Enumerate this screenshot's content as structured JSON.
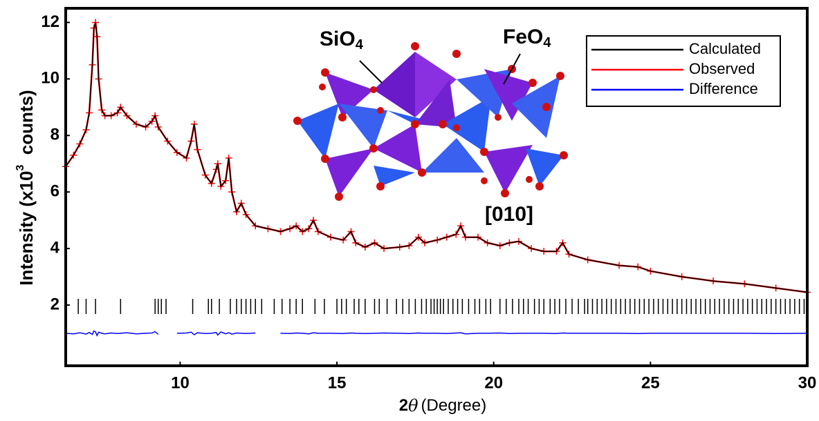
{
  "chart_data": {
    "type": "line",
    "y_label": {
      "text": "Intensity (x10",
      "sup": "3",
      "tail": "  counts)"
    },
    "x_label": {
      "prefix": "2",
      "symbol": "θ",
      "text": "(Degree)"
    },
    "annotations": [
      {
        "text": "SiO",
        "sub": "4"
      },
      {
        "text": "FeO",
        "sub": "4"
      },
      {
        "text": "[010]"
      }
    ],
    "x": [
      6.35,
      6.6,
      6.8,
      7.0,
      7.1,
      7.2,
      7.25,
      7.3,
      7.35,
      7.4,
      7.5,
      7.6,
      7.8,
      8.0,
      8.1,
      8.3,
      8.6,
      8.9,
      9.1,
      9.2,
      9.3,
      9.6,
      9.9,
      10.2,
      10.35,
      10.45,
      10.55,
      10.8,
      11.0,
      11.15,
      11.2,
      11.3,
      11.45,
      11.55,
      11.65,
      11.8,
      11.95,
      12.1,
      12.4,
      12.8,
      13.2,
      13.5,
      13.7,
      13.9,
      14.1,
      14.25,
      14.4,
      14.8,
      15.2,
      15.45,
      15.6,
      15.9,
      16.2,
      16.5,
      17.0,
      17.3,
      17.6,
      17.8,
      18.2,
      18.5,
      18.8,
      18.95,
      19.1,
      19.5,
      19.8,
      20.2,
      20.5,
      20.8,
      21.2,
      21.6,
      22.0,
      22.2,
      22.4,
      23.0,
      24.0,
      24.6,
      25.0,
      26.0,
      27.0,
      28.0,
      29.0,
      30.0
    ],
    "series": [
      {
        "name": "Calculated",
        "color": "#000000",
        "values": [
          6.9,
          7.3,
          7.7,
          8.2,
          8.8,
          10.5,
          11.8,
          12.0,
          11.5,
          10.0,
          8.9,
          8.7,
          8.7,
          8.8,
          9.0,
          8.7,
          8.4,
          8.3,
          8.5,
          8.7,
          8.3,
          7.8,
          7.4,
          7.2,
          7.8,
          8.4,
          7.5,
          6.6,
          6.3,
          6.8,
          7.0,
          6.2,
          6.4,
          7.2,
          6.0,
          5.3,
          5.6,
          5.2,
          4.8,
          4.7,
          4.6,
          4.7,
          4.8,
          4.6,
          4.7,
          5.0,
          4.6,
          4.4,
          4.3,
          4.6,
          4.2,
          4.05,
          4.2,
          4.0,
          4.05,
          4.1,
          4.4,
          4.2,
          4.3,
          4.4,
          4.5,
          4.8,
          4.4,
          4.4,
          4.2,
          4.1,
          4.2,
          4.25,
          4.0,
          3.9,
          3.9,
          4.2,
          3.8,
          3.6,
          3.4,
          3.35,
          3.2,
          3.0,
          2.85,
          2.75,
          2.6,
          2.45
        ]
      },
      {
        "name": "Observed",
        "color": "#ff0000",
        "values": [
          6.9,
          7.3,
          7.7,
          8.2,
          8.8,
          10.5,
          11.8,
          12.0,
          11.5,
          10.0,
          8.9,
          8.7,
          8.7,
          8.8,
          9.0,
          8.7,
          8.4,
          8.3,
          8.5,
          8.7,
          8.3,
          7.8,
          7.4,
          7.2,
          7.8,
          8.4,
          7.5,
          6.6,
          6.3,
          6.8,
          7.0,
          6.2,
          6.4,
          7.2,
          6.0,
          5.3,
          5.6,
          5.2,
          4.8,
          4.7,
          4.6,
          4.7,
          4.8,
          4.6,
          4.7,
          5.0,
          4.6,
          4.4,
          4.3,
          4.6,
          4.2,
          4.05,
          4.2,
          4.0,
          4.05,
          4.1,
          4.4,
          4.2,
          4.3,
          4.4,
          4.5,
          4.8,
          4.4,
          4.4,
          4.2,
          4.1,
          4.2,
          4.25,
          4.0,
          3.9,
          3.9,
          4.2,
          3.8,
          3.6,
          3.4,
          3.35,
          3.2,
          3.0,
          2.85,
          2.75,
          2.6,
          2.45
        ]
      },
      {
        "name": "Difference",
        "color": "#0000ff",
        "values": [
          1.0,
          0.98,
          1.02,
          0.97,
          1.03,
          0.96,
          1.08,
          1.05,
          0.92,
          1.04,
          1.0,
          0.98,
          1.01,
          0.99,
          1.0,
          1.02,
          0.98,
          1.0,
          1.01,
          1.06,
          0.96,
          null,
          1.0,
          1.01,
          1.04,
          0.95,
          1.02,
          0.99,
          1.0,
          1.03,
          0.94,
          1.05,
          0.98,
          1.02,
          0.97,
          1.01,
          1.0,
          0.99,
          1.01,
          null,
          1.0,
          0.99,
          1.01,
          1.0,
          0.98,
          1.02,
          1.0,
          1.0,
          0.99,
          1.01,
          1.0,
          0.99,
          1.0,
          1.01,
          1.0,
          0.99,
          1.01,
          1.0,
          1.0,
          0.99,
          1.01,
          1.02,
          0.98,
          1.0,
          1.0,
          1.01,
          0.99,
          1.0,
          1.0,
          1.0,
          0.99,
          1.01,
          1.0,
          1.0,
          1.0,
          0.99,
          1.0,
          1.0,
          1.0,
          1.0,
          0.99,
          1.0
        ]
      }
    ],
    "reflections": [
      6.75,
      7.0,
      7.3,
      8.1,
      9.2,
      9.3,
      9.4,
      9.55,
      10.4,
      10.9,
      11.0,
      11.25,
      11.6,
      11.8,
      11.95,
      12.1,
      12.25,
      12.4,
      12.6,
      13.0,
      13.25,
      13.5,
      13.7,
      13.9,
      14.3,
      14.6,
      15.0,
      15.15,
      15.3,
      15.55,
      15.7,
      15.9,
      16.2,
      16.35,
      16.6,
      16.9,
      17.1,
      17.3,
      17.5,
      17.7,
      17.85,
      18.0,
      18.1,
      18.2,
      18.3,
      18.4,
      18.55,
      18.7,
      18.85,
      19.0,
      19.2,
      19.4,
      19.55,
      19.75,
      19.9,
      20.2,
      20.4,
      20.6,
      20.8,
      20.95,
      21.1,
      21.3,
      21.45,
      21.6,
      21.8,
      21.95,
      22.1,
      22.3,
      22.5,
      22.7,
      22.9,
      23.0,
      23.15,
      23.3,
      23.45,
      23.6,
      23.75,
      23.9,
      24.05,
      24.2,
      24.35,
      24.5,
      24.65,
      24.8,
      24.95,
      25.1,
      25.25,
      25.4,
      25.55,
      25.7,
      25.85,
      26.0,
      26.15,
      26.3,
      26.45,
      26.6,
      26.75,
      26.9,
      27.05,
      27.2,
      27.35,
      27.5,
      27.65,
      27.8,
      27.95,
      28.1,
      28.25,
      28.4,
      28.55,
      28.7,
      28.85,
      29.0,
      29.15,
      29.3,
      29.45,
      29.6,
      29.75,
      29.9
    ],
    "xlim": [
      6.35,
      30
    ],
    "ylim": [
      -0.15,
      12.5
    ],
    "xticks": [
      10,
      15,
      20,
      25,
      30
    ],
    "yticks": [
      2,
      4,
      6,
      8,
      10,
      12
    ],
    "grid": false,
    "legend": "upper right"
  }
}
